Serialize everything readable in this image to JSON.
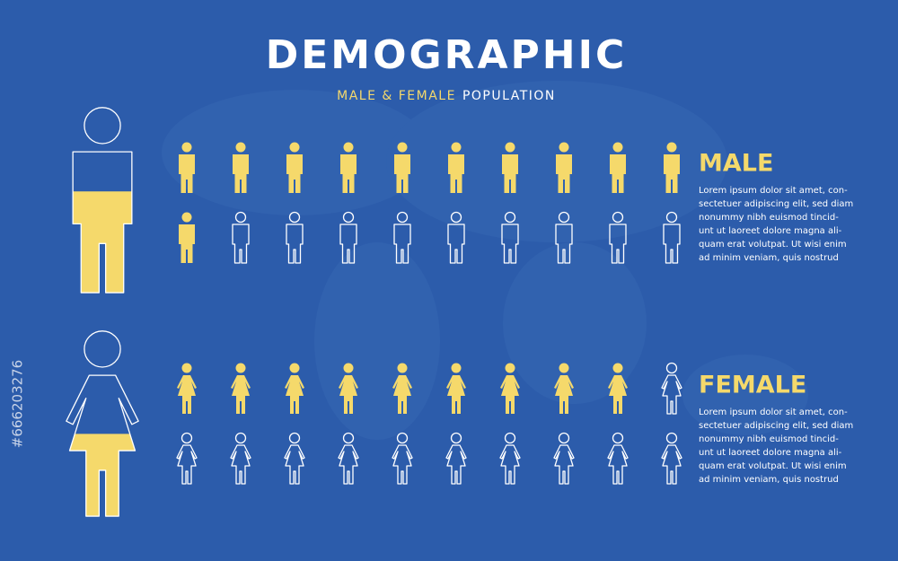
{
  "title": "DEMOGRAPHIC",
  "subtitle": {
    "highlight": "MALE & FEMALE",
    "rest": "POPULATION"
  },
  "sections": [
    {
      "label": "MALE",
      "icon": "male",
      "filled": 11,
      "total": 20,
      "text": [
        "Lorem ipsum dolor sit amet, con-",
        "sectetuer adipiscing elit, sed diam",
        "nonummy nibh euismod tincid-",
        "unt ut laoreet dolore magna ali-",
        "quam erat volutpat. Ut wisi enim",
        "ad minim veniam, quis nostrud"
      ]
    },
    {
      "label": "FEMALE",
      "icon": "female",
      "filled": 9,
      "total": 20,
      "text": [
        "Lorem ipsum dolor sit amet, con-",
        "sectetuer adipiscing elit, sed diam",
        "nonummy nibh euismod tincid-",
        "unt ut laoreet dolore magna ali-",
        "quam erat volutpat. Ut wisi enim",
        "ad minim veniam, quis nostrud"
      ]
    }
  ],
  "stock_id": "#666203276"
}
